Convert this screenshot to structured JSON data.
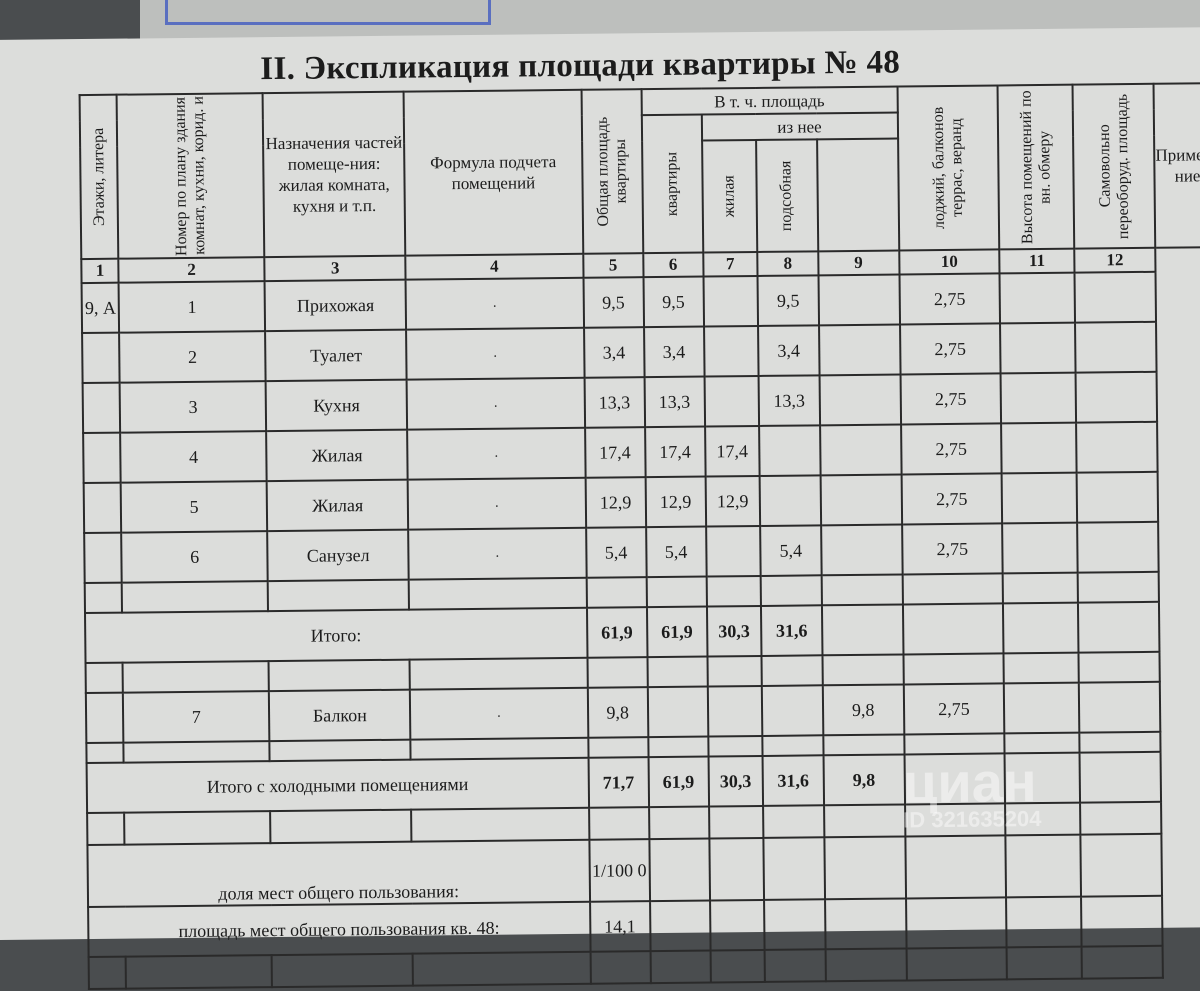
{
  "title": "II. Экспликация площади квартиры № 48",
  "headers": {
    "c1": "Этажи, литера",
    "c2": "Номер по плану здания комнат, кухни, корид. и",
    "c3": "Назначения частей помеще-ния: жилая комната, кухня и т.п.",
    "c4": "Формула подчета помещений",
    "c5": "Общая площадь квартиры",
    "group": "В т. ч. площадь",
    "c6": "квартиры",
    "sub": "из нее",
    "c7": "жилая",
    "c8": "подсобная",
    "c9": "лоджий, балконов террас, веранд",
    "c10": "Высота помещений по вн. обмеру",
    "c11": "Самовольно переоборуд. площадь",
    "c12": "Примеча ние"
  },
  "col_numbers": [
    "1",
    "2",
    "3",
    "4",
    "5",
    "6",
    "7",
    "8",
    "9",
    "10",
    "11",
    "12"
  ],
  "rows": [
    {
      "floor": "9, А",
      "no": "1",
      "name": "Прихожая",
      "formula": ".",
      "total": "9,5",
      "apt": "9,5",
      "living": "",
      "aux": "9,5",
      "balcony": "",
      "height": "2,75"
    },
    {
      "floor": "",
      "no": "2",
      "name": "Туалет",
      "formula": ".",
      "total": "3,4",
      "apt": "3,4",
      "living": "",
      "aux": "3,4",
      "balcony": "",
      "height": "2,75"
    },
    {
      "floor": "",
      "no": "3",
      "name": "Кухня",
      "formula": ".",
      "total": "13,3",
      "apt": "13,3",
      "living": "",
      "aux": "13,3",
      "balcony": "",
      "height": "2,75"
    },
    {
      "floor": "",
      "no": "4",
      "name": "Жилая",
      "formula": ".",
      "total": "17,4",
      "apt": "17,4",
      "living": "17,4",
      "aux": "",
      "balcony": "",
      "height": "2,75"
    },
    {
      "floor": "",
      "no": "5",
      "name": "Жилая",
      "formula": ".",
      "total": "12,9",
      "apt": "12,9",
      "living": "12,9",
      "aux": "",
      "balcony": "",
      "height": "2,75"
    },
    {
      "floor": "",
      "no": "6",
      "name": "Санузел",
      "formula": ".",
      "total": "5,4",
      "apt": "5,4",
      "living": "",
      "aux": "5,4",
      "balcony": "",
      "height": "2,75"
    }
  ],
  "subtotal": {
    "label": "Итого:",
    "total": "61,9",
    "apt": "61,9",
    "living": "30,3",
    "aux": "31,6"
  },
  "balcony_row": {
    "no": "7",
    "name": "Балкон",
    "formula": ".",
    "total": "9,8",
    "balcony": "9,8",
    "height": "2,75"
  },
  "total_cold": {
    "label": "Итого с холодными помещениями",
    "total": "71,7",
    "apt": "61,9",
    "living": "30,3",
    "aux": "31,6",
    "balcony": "9,8"
  },
  "common_share": {
    "label": "доля мест общего пользования:",
    "value": "1/100 0"
  },
  "common_area": {
    "label": "площадь мест общего пользования кв. 48:",
    "value": "14,1"
  },
  "watermark": {
    "brand": "циан",
    "id": "ID 321635204"
  }
}
